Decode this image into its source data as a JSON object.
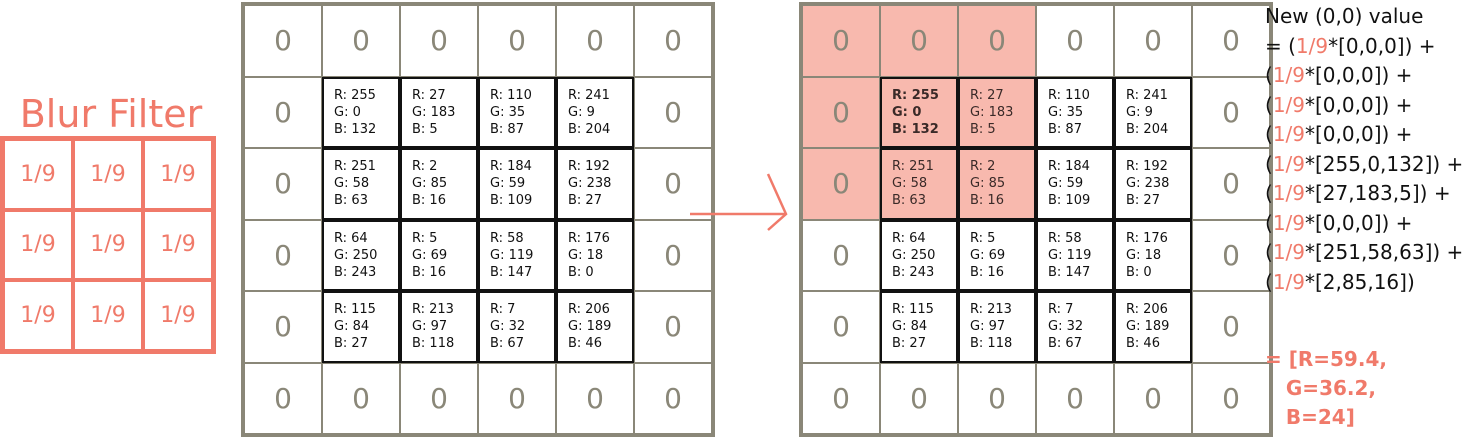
{
  "filter": {
    "title": "Blur Filter",
    "cells": [
      "1/9",
      "1/9",
      "1/9",
      "1/9",
      "1/9",
      "1/9",
      "1/9",
      "1/9",
      "1/9"
    ]
  },
  "grid_left": {
    "rows": [
      [
        {
          "pad": "0"
        },
        {
          "pad": "0"
        },
        {
          "pad": "0"
        },
        {
          "pad": "0"
        },
        {
          "pad": "0"
        },
        {
          "pad": "0"
        }
      ],
      [
        {
          "pad": "0"
        },
        {
          "r": "R: 255",
          "g": "G: 0",
          "b": "B: 132"
        },
        {
          "r": "R: 27",
          "g": "G: 183",
          "b": "B: 5"
        },
        {
          "r": "R: 110",
          "g": "G: 35",
          "b": "B: 87"
        },
        {
          "r": "R: 241",
          "g": "G: 9",
          "b": "B: 204"
        },
        {
          "pad": "0"
        }
      ],
      [
        {
          "pad": "0"
        },
        {
          "r": "R: 251",
          "g": "G: 58",
          "b": "B: 63"
        },
        {
          "r": "R: 2",
          "g": "G: 85",
          "b": "B: 16"
        },
        {
          "r": "R: 184",
          "g": "G: 59",
          "b": "B: 109"
        },
        {
          "r": "R: 192",
          "g": "G: 238",
          "b": "B: 27"
        },
        {
          "pad": "0"
        }
      ],
      [
        {
          "pad": "0"
        },
        {
          "r": "R: 64",
          "g": "G: 250",
          "b": "B: 243"
        },
        {
          "r": "R: 5",
          "g": "G: 69",
          "b": "B: 16"
        },
        {
          "r": "R: 58",
          "g": "G: 119",
          "b": "B: 147"
        },
        {
          "r": "R: 176",
          "g": "G: 18",
          "b": "B: 0"
        },
        {
          "pad": "0"
        }
      ],
      [
        {
          "pad": "0"
        },
        {
          "r": "R: 115",
          "g": "G: 84",
          "b": "B: 27"
        },
        {
          "r": "R: 213",
          "g": "G: 97",
          "b": "B: 118"
        },
        {
          "r": "R: 7",
          "g": "G: 32",
          "b": "B: 67"
        },
        {
          "r": "R: 206",
          "g": "G: 189",
          "b": "B: 46"
        },
        {
          "pad": "0"
        }
      ],
      [
        {
          "pad": "0"
        },
        {
          "pad": "0"
        },
        {
          "pad": "0"
        },
        {
          "pad": "0"
        },
        {
          "pad": "0"
        },
        {
          "pad": "0"
        }
      ]
    ]
  },
  "grid_right": {
    "rows": [
      [
        {
          "pad": "0",
          "hl": true
        },
        {
          "pad": "0",
          "hl": true
        },
        {
          "pad": "0",
          "hl": true
        },
        {
          "pad": "0"
        },
        {
          "pad": "0"
        },
        {
          "pad": "0"
        }
      ],
      [
        {
          "pad": "0",
          "hl": true
        },
        {
          "r": "R: 255",
          "g": "G: 0",
          "b": "B: 132",
          "hl": true,
          "bold": true
        },
        {
          "r": "R: 27",
          "g": "G: 183",
          "b": "B: 5",
          "hl": true
        },
        {
          "r": "R: 110",
          "g": "G: 35",
          "b": "B: 87"
        },
        {
          "r": "R: 241",
          "g": "G: 9",
          "b": "B: 204"
        },
        {
          "pad": "0"
        }
      ],
      [
        {
          "pad": "0",
          "hl": true
        },
        {
          "r": "R: 251",
          "g": "G: 58",
          "b": "B: 63",
          "hl": true
        },
        {
          "r": "R: 2",
          "g": "G: 85",
          "b": "B: 16",
          "hl": true
        },
        {
          "r": "R: 184",
          "g": "G: 59",
          "b": "B: 109"
        },
        {
          "r": "R: 192",
          "g": "G: 238",
          "b": "B: 27"
        },
        {
          "pad": "0"
        }
      ],
      [
        {
          "pad": "0"
        },
        {
          "r": "R: 64",
          "g": "G: 250",
          "b": "B: 243"
        },
        {
          "r": "R: 5",
          "g": "G: 69",
          "b": "B: 16"
        },
        {
          "r": "R: 58",
          "g": "G: 119",
          "b": "B: 147"
        },
        {
          "r": "R: 176",
          "g": "G: 18",
          "b": "B: 0"
        },
        {
          "pad": "0"
        }
      ],
      [
        {
          "pad": "0"
        },
        {
          "r": "R: 115",
          "g": "G: 84",
          "b": "B: 27"
        },
        {
          "r": "R: 213",
          "g": "G: 97",
          "b": "B: 118"
        },
        {
          "r": "R: 7",
          "g": "G: 32",
          "b": "B: 67"
        },
        {
          "r": "R: 206",
          "g": "G: 189",
          "b": "B: 46"
        },
        {
          "pad": "0"
        }
      ],
      [
        {
          "pad": "0"
        },
        {
          "pad": "0"
        },
        {
          "pad": "0"
        },
        {
          "pad": "0"
        },
        {
          "pad": "0"
        },
        {
          "pad": "0"
        }
      ]
    ]
  },
  "formula": {
    "heading": "New (0,0) value",
    "lines": [
      {
        "pre": "= (",
        "frac": "1/9",
        "post": "*[0,0,0]) +"
      },
      {
        "pre": "(",
        "frac": "1/9",
        "post": "*[0,0,0]) +"
      },
      {
        "pre": "(",
        "frac": "1/9",
        "post": "*[0,0,0]) +"
      },
      {
        "pre": "(",
        "frac": "1/9",
        "post": "*[0,0,0]) +"
      },
      {
        "pre": "(",
        "frac": "1/9",
        "post": "*[255,0,132]) +"
      },
      {
        "pre": "(",
        "frac": "1/9",
        "post": "*[27,183,5]) +"
      },
      {
        "pre": "(",
        "frac": "1/9",
        "post": "*[0,0,0]) +"
      },
      {
        "pre": "(",
        "frac": "1/9",
        "post": "*[251,58,63]) +"
      },
      {
        "pre": "(",
        "frac": "1/9",
        "post": "*[2,85,16])"
      }
    ],
    "result_lines": [
      "= [R=59.4,",
      "   G=36.2,",
      "   B=24]"
    ]
  },
  "colors": {
    "accent": "#f07a6a",
    "highlight": "#f8b9ae",
    "padding_border": "#8a8778",
    "pixel_border": "#111111"
  }
}
